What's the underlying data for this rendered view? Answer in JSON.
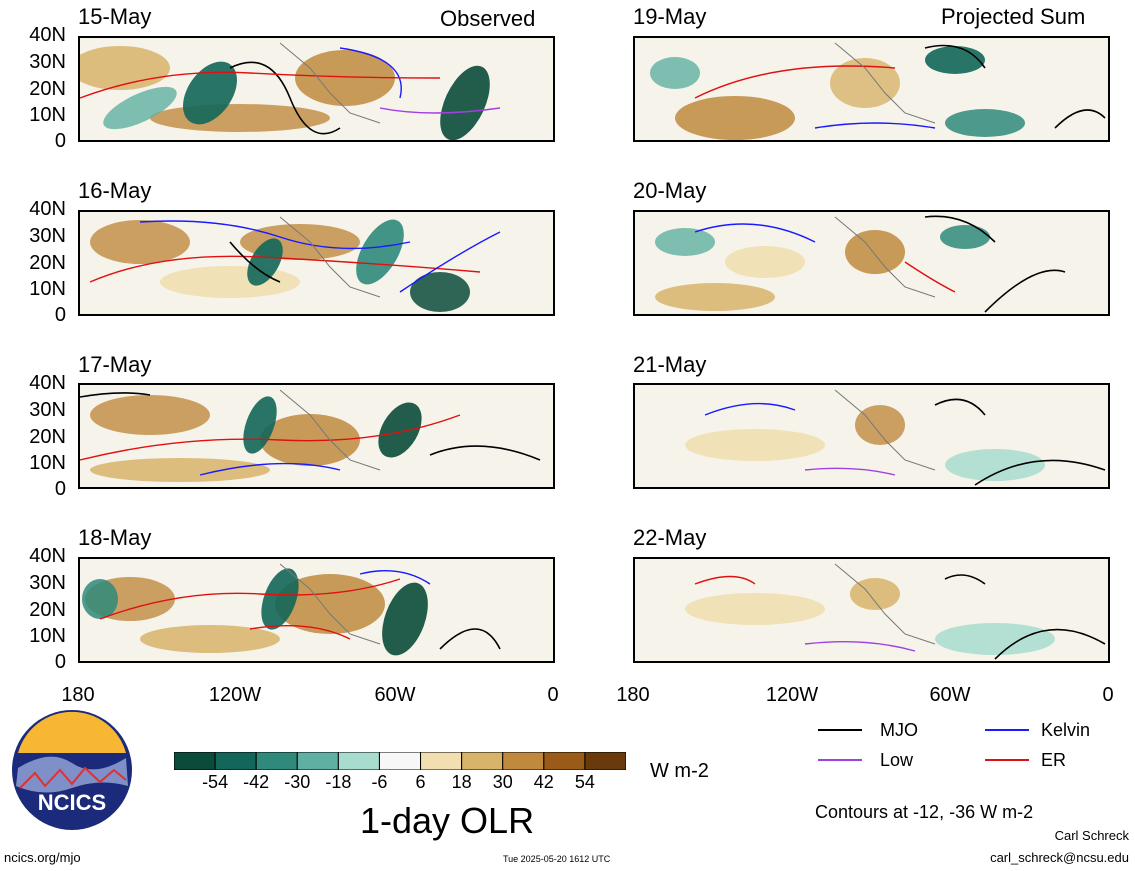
{
  "headers": {
    "left": "Observed",
    "right": "Projected Sum"
  },
  "panels": [
    {
      "date": "15-May",
      "column": "observed"
    },
    {
      "date": "16-May",
      "column": "observed"
    },
    {
      "date": "17-May",
      "column": "observed"
    },
    {
      "date": "18-May",
      "column": "observed"
    },
    {
      "date": "19-May",
      "column": "projected"
    },
    {
      "date": "20-May",
      "column": "projected"
    },
    {
      "date": "21-May",
      "column": "projected"
    },
    {
      "date": "22-May",
      "column": "projected"
    }
  ],
  "lat_labels": [
    "40N",
    "30N",
    "20N",
    "10N",
    "0"
  ],
  "lon_labels": [
    "180",
    "120W",
    "60W",
    "0"
  ],
  "colorbar": {
    "labels": [
      "-54",
      "-42",
      "-30",
      "-18",
      "-6",
      "6",
      "18",
      "30",
      "42",
      "54"
    ],
    "colors": [
      "#0b4b3a",
      "#12675a",
      "#2f8a7c",
      "#5fb0a3",
      "#a7dccf",
      "#f7f7f7",
      "#f1dfb1",
      "#d8b36a",
      "#c08a3e",
      "#9a5a18",
      "#6b3a0c"
    ],
    "units": "W m-2",
    "title": "1-day OLR"
  },
  "legend": {
    "items": [
      {
        "label": "MJO",
        "color": "#000000"
      },
      {
        "label": "Kelvin",
        "color": "#1a1aff"
      },
      {
        "label": "Low",
        "color": "#a040e0"
      },
      {
        "label": "ER",
        "color": "#e01010"
      }
    ],
    "contours_note": "Contours at -12, -36 W m-2"
  },
  "footer": {
    "left": "ncics.org/mjo",
    "center": "Tue 2025-05-20 1612 UTC",
    "author": "Carl Schreck",
    "email": "carl_schreck@ncsu.edu"
  },
  "logo": {
    "text": "NCICS"
  }
}
